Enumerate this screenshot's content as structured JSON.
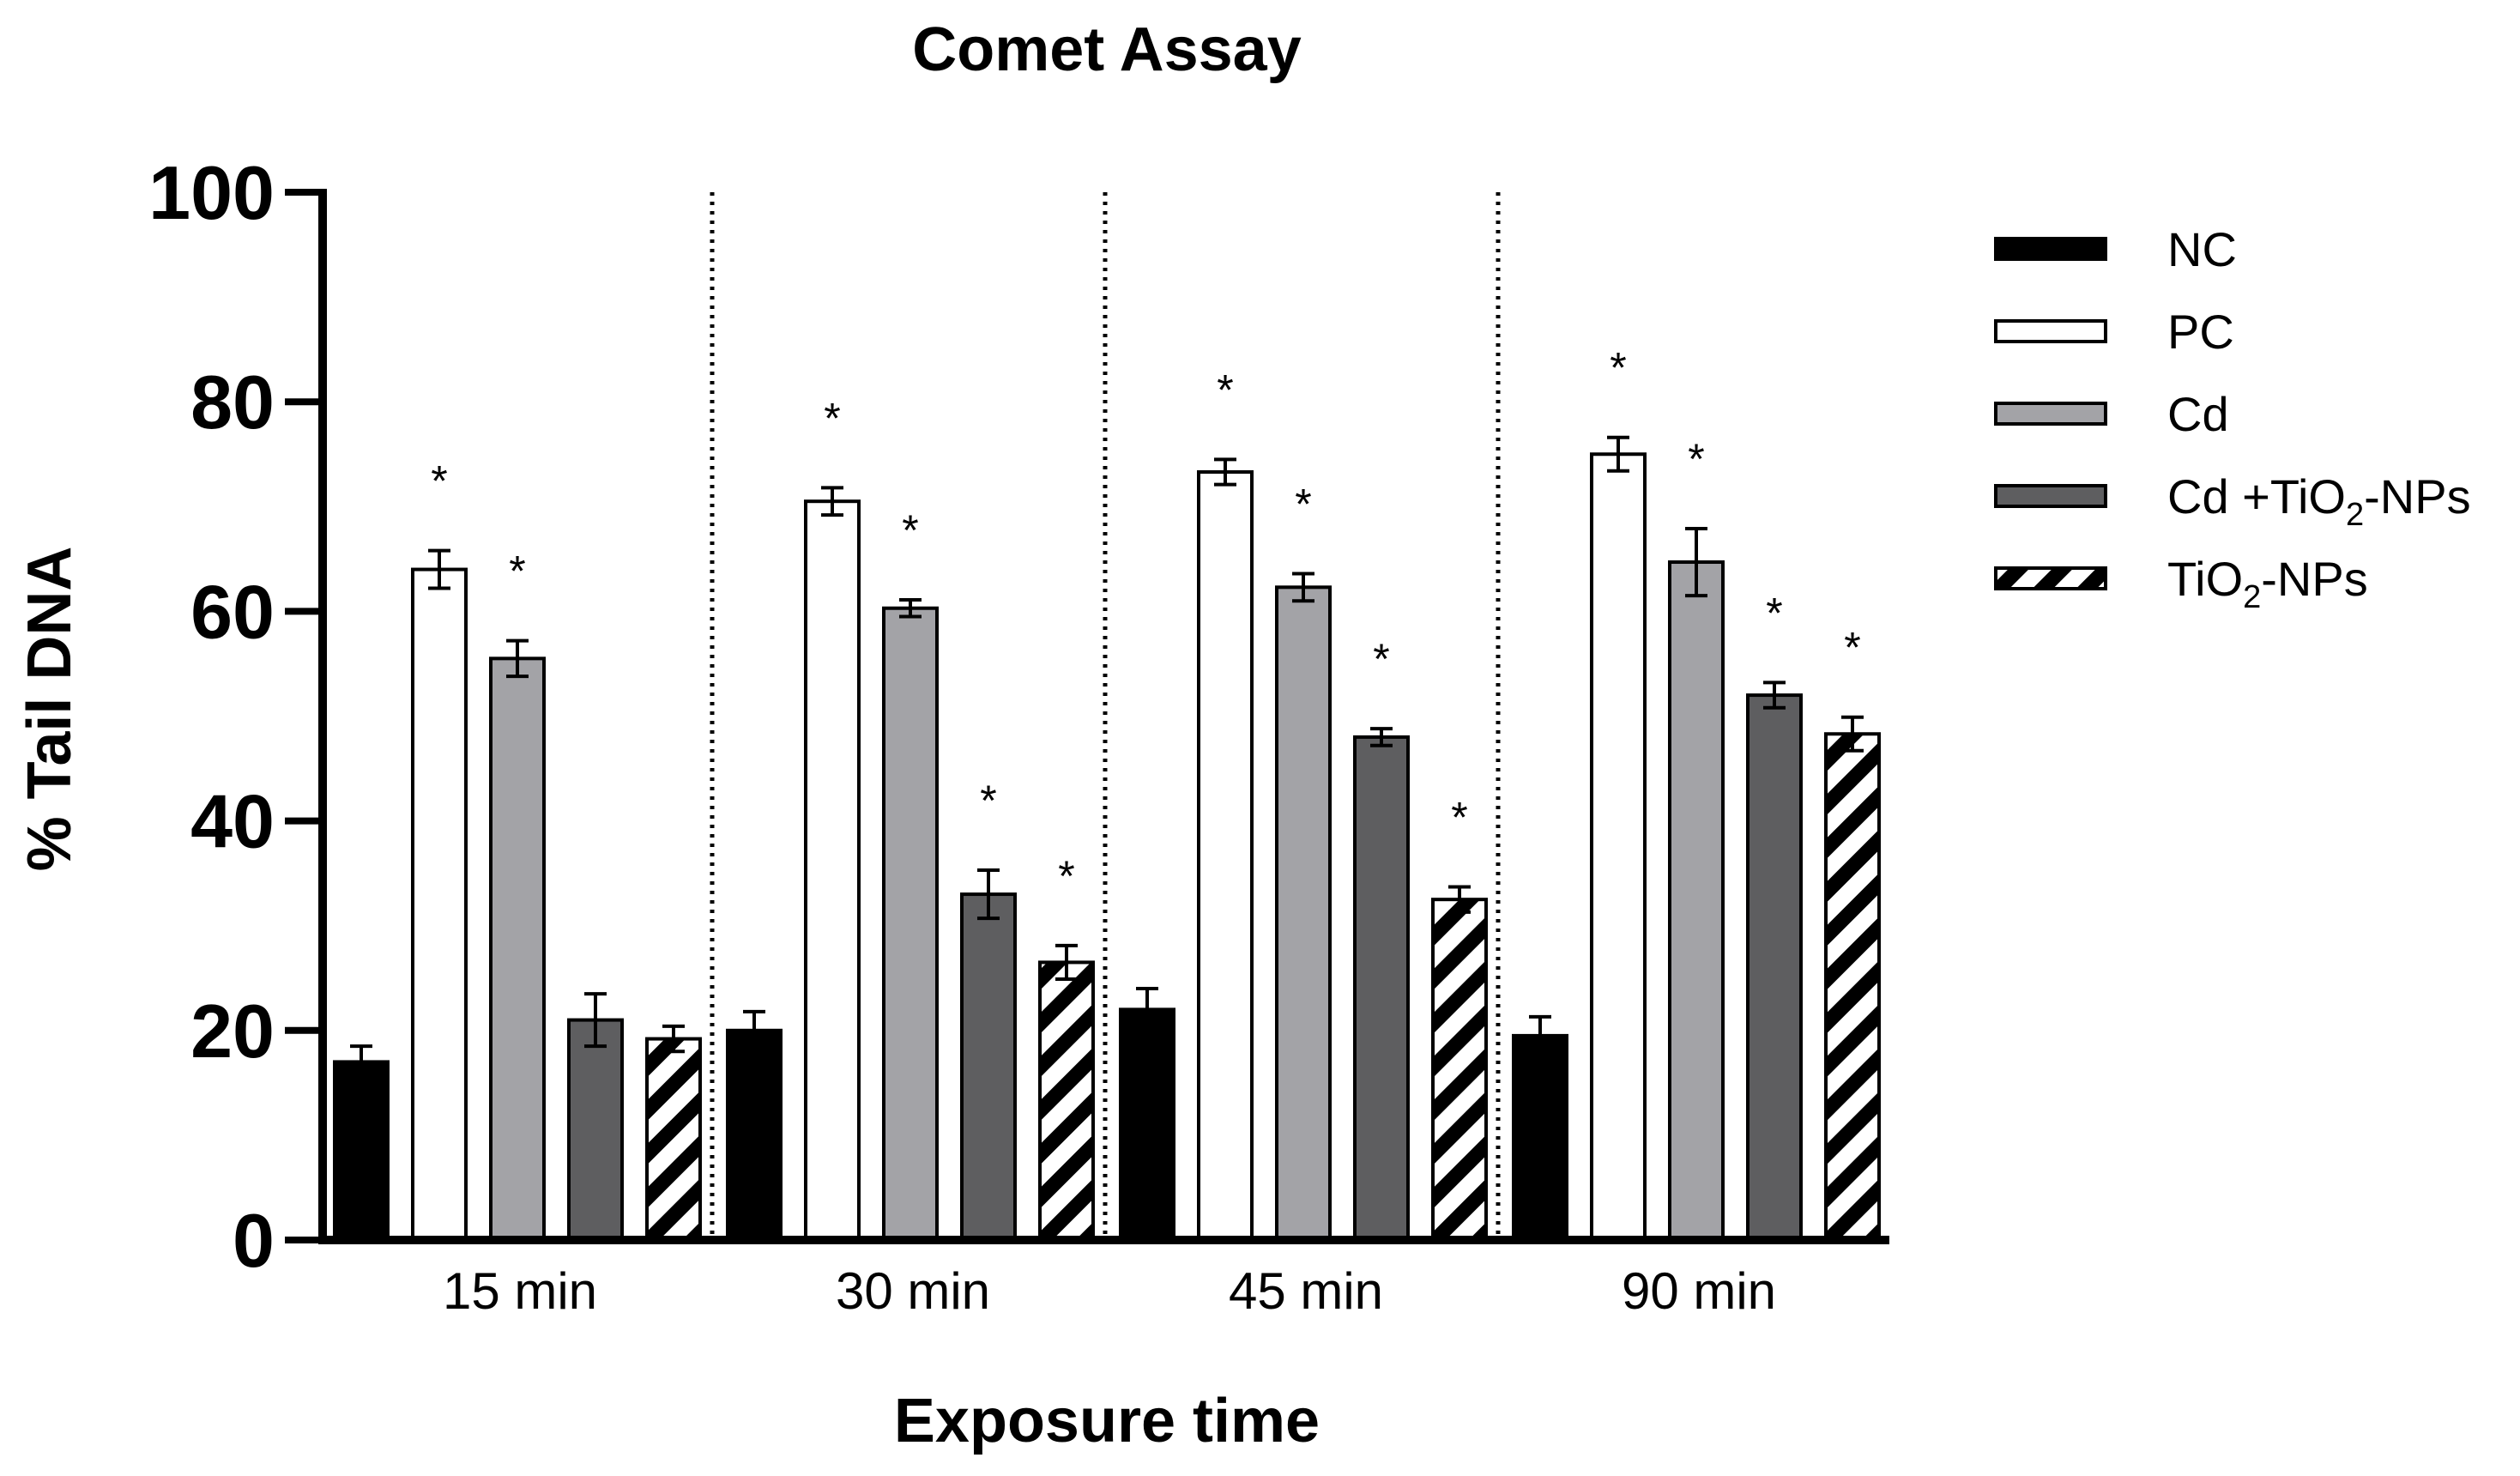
{
  "chart_data": {
    "type": "bar",
    "title": "Comet Assay",
    "xlabel": "Exposure time",
    "ylabel": "% Tail DNA",
    "ylim": [
      0,
      100
    ],
    "yticks": [
      "0",
      "20",
      "40",
      "60",
      "80",
      "100"
    ],
    "categories": [
      "15 min",
      "30 min",
      "45 min",
      "90 min"
    ],
    "grid": false,
    "legend_position": "right",
    "group_separators": "dotted",
    "significance_marker": "*",
    "series": [
      {
        "name": "NC",
        "fill": "black",
        "values": [
          17,
          20,
          22,
          19.5
        ],
        "errors": [
          1.5,
          1.8,
          2.0,
          1.8
        ],
        "significant": [
          false,
          false,
          false,
          false
        ]
      },
      {
        "name": "PC",
        "fill": "white",
        "values": [
          64,
          70.5,
          73.3,
          75
        ],
        "errors": [
          1.8,
          1.3,
          1.2,
          1.6
        ],
        "significant": [
          true,
          true,
          true,
          true
        ]
      },
      {
        "name": "Cd",
        "fill": "light-gray",
        "values": [
          55.5,
          60.3,
          62.3,
          64.7
        ],
        "errors": [
          1.7,
          0.8,
          1.3,
          3.2
        ],
        "significant": [
          true,
          true,
          true,
          true
        ]
      },
      {
        "name": "Cd +TiO2-NPs",
        "legend_parts": [
          "Cd +TiO",
          "2",
          "-NPs"
        ],
        "fill": "dark-gray",
        "values": [
          21,
          33,
          48,
          52
        ],
        "errors": [
          2.5,
          2.3,
          0.8,
          1.2
        ],
        "significant": [
          false,
          true,
          true,
          true
        ]
      },
      {
        "name": "TiO2-NPs",
        "legend_parts": [
          "TiO",
          "2",
          "-NPs"
        ],
        "fill": "diagonal-hatch",
        "values": [
          19.2,
          26.5,
          32.5,
          48.3
        ],
        "errors": [
          1.2,
          1.6,
          1.2,
          1.6
        ],
        "significant": [
          false,
          true,
          true,
          true
        ]
      }
    ]
  },
  "colors": {
    "nc": "#000000",
    "pc": "#ffffff",
    "cd": "#a3a3a7",
    "cd_tio2": "#5e5e60",
    "hatch_dark": "#000000",
    "axis": "#000000"
  }
}
